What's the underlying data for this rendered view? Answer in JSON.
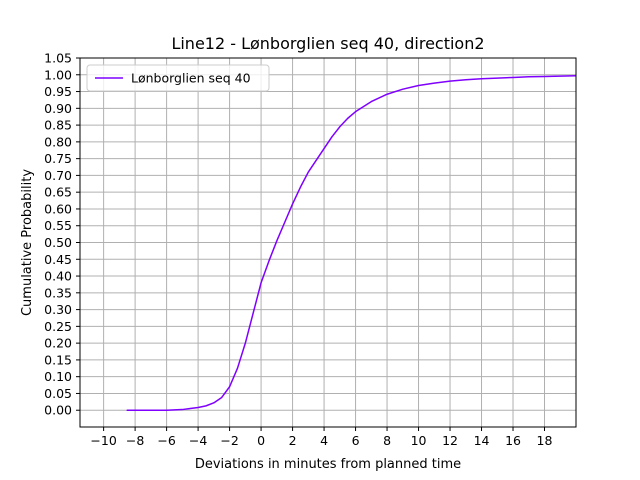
{
  "chart_data": {
    "type": "line",
    "title": "Line12 - Lønborglien seq 40, direction2",
    "xlabel": "Deviations in minutes from planned time",
    "ylabel": "Cumulative Probability",
    "xlim": [
      -11.5,
      20
    ],
    "ylim": [
      -0.05,
      1.05
    ],
    "x_ticks": [
      -10,
      -8,
      -6,
      -4,
      -2,
      0,
      2,
      4,
      6,
      8,
      10,
      12,
      14,
      16,
      18
    ],
    "x_tick_labels": [
      "−10",
      "−8",
      "−6",
      "−4",
      "−2",
      "0",
      "2",
      "4",
      "6",
      "8",
      "10",
      "12",
      "14",
      "16",
      "18"
    ],
    "y_ticks": [
      0.0,
      0.05,
      0.1,
      0.15,
      0.2,
      0.25,
      0.3,
      0.35,
      0.4,
      0.45,
      0.5,
      0.55,
      0.6,
      0.65,
      0.7,
      0.75,
      0.8,
      0.85,
      0.9,
      0.95,
      1.0,
      1.05
    ],
    "y_tick_labels": [
      "0.00",
      "0.05",
      "0.10",
      "0.15",
      "0.20",
      "0.25",
      "0.30",
      "0.35",
      "0.40",
      "0.45",
      "0.50",
      "0.55",
      "0.60",
      "0.65",
      "0.70",
      "0.75",
      "0.80",
      "0.85",
      "0.90",
      "0.95",
      "1.00",
      "1.05"
    ],
    "grid": true,
    "legend_position": "top-left",
    "series": [
      {
        "name": "Lønborglien seq 40",
        "color": "#7f00ff",
        "x": [
          -8.5,
          -7,
          -6,
          -5,
          -4.5,
          -4,
          -3.5,
          -3,
          -2.5,
          -2,
          -1.5,
          -1,
          -0.5,
          0,
          0.5,
          1,
          1.5,
          2,
          2.5,
          3,
          3.5,
          4,
          4.5,
          5,
          5.5,
          6,
          6.5,
          7,
          8,
          9,
          10,
          11,
          12,
          13,
          14,
          15,
          16,
          17,
          18,
          20
        ],
        "y": [
          0.0,
          0.0,
          0.0,
          0.002,
          0.005,
          0.008,
          0.013,
          0.022,
          0.038,
          0.07,
          0.125,
          0.2,
          0.29,
          0.38,
          0.445,
          0.505,
          0.56,
          0.615,
          0.665,
          0.71,
          0.745,
          0.78,
          0.815,
          0.845,
          0.87,
          0.89,
          0.905,
          0.92,
          0.942,
          0.957,
          0.968,
          0.975,
          0.981,
          0.985,
          0.988,
          0.99,
          0.992,
          0.994,
          0.995,
          0.997
        ]
      }
    ]
  }
}
